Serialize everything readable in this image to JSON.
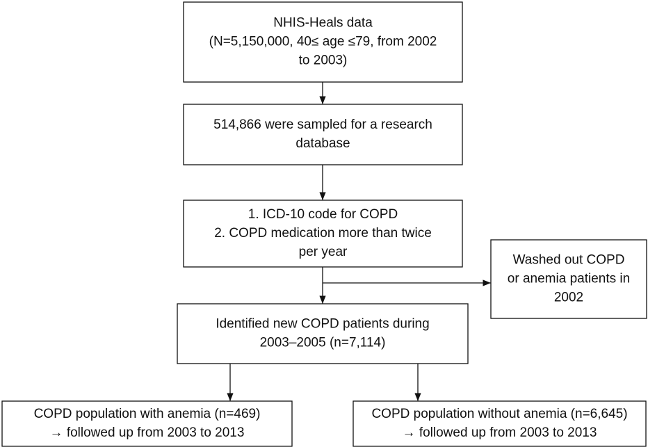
{
  "nodes": [
    {
      "lines": [
        "NHIS-Heals data",
        "(N=5,150,000, 40≤ age ≤79, from 2002",
        "to 2003)"
      ]
    },
    {
      "lines": [
        "514,866 were sampled for a research",
        "database"
      ]
    },
    {
      "lines": [
        "1. ICD-10 code for COPD",
        "2. COPD medication more than twice",
        "per year"
      ]
    },
    {
      "lines": [
        "Washed out COPD",
        "or anemia patients in",
        "2002"
      ]
    },
    {
      "lines": [
        "Identified new COPD patients during",
        "2003–2005 (n=7,114)"
      ]
    },
    {
      "lines": [
        "COPD population with anemia (n=469)",
        "→ followed up from 2003 to 2013"
      ]
    },
    {
      "lines": [
        "COPD population without anemia (n=6,645)",
        "→ followed up from 2003 to 2013"
      ]
    }
  ]
}
